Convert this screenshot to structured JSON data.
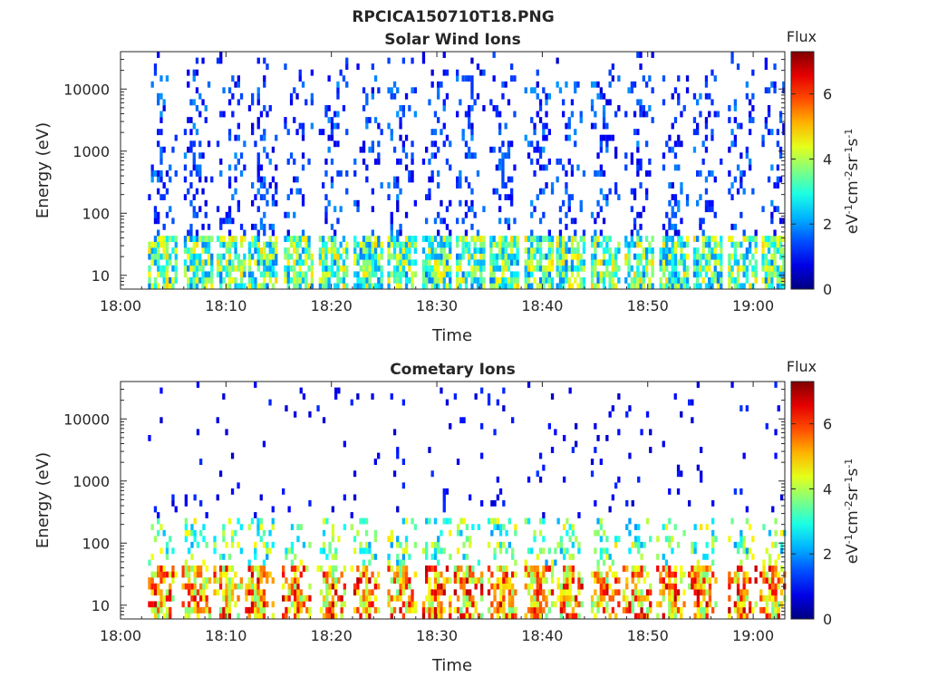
{
  "figure": {
    "title": "RPCICA150710T18.PNG"
  },
  "colormap": "jet",
  "chart_data": [
    {
      "type": "heatmap",
      "title": "Solar Wind Ions",
      "xlabel": "Time",
      "ylabel": "Energy (eV)",
      "x_ticks": [
        "18:00",
        "18:10",
        "18:20",
        "18:30",
        "18:40",
        "18:50",
        "19:00"
      ],
      "y_scale": "log",
      "y_ticks": [
        "10",
        "100",
        "1000",
        "10000"
      ],
      "ylim": [
        6,
        40000
      ],
      "colorbar": {
        "title": "Flux",
        "label": "eV-1cm-2sr-1s-1",
        "label_parts": [
          [
            "eV",
            ""
          ],
          [
            "-1",
            "sup"
          ],
          [
            "cm",
            ""
          ],
          [
            "-2",
            "sup"
          ],
          [
            "sr",
            ""
          ],
          [
            "-1",
            "sup"
          ],
          [
            "s",
            ""
          ],
          [
            "-1",
            "sup"
          ]
        ],
        "range": [
          0,
          7.3
        ],
        "ticks": [
          "0",
          "2",
          "4",
          "6"
        ]
      },
      "sweep_times_min": [
        3.8,
        7.2,
        10.3,
        13.3,
        16.7,
        20.0,
        23.3,
        26.5,
        29.8,
        33.0,
        36.2,
        39.5,
        42.5,
        45.8,
        49.0,
        52.3,
        55.5,
        58.8,
        62.0
      ],
      "low_energy_band_flux": 3.5,
      "high_energy_sparse_flux": 0.6
    },
    {
      "type": "heatmap",
      "title": "Cometary Ions",
      "xlabel": "Time",
      "ylabel": "Energy (eV)",
      "x_ticks": [
        "18:00",
        "18:10",
        "18:20",
        "18:30",
        "18:40",
        "18:50",
        "19:00"
      ],
      "y_scale": "log",
      "y_ticks": [
        "10",
        "100",
        "1000",
        "10000"
      ],
      "ylim": [
        6,
        40000
      ],
      "colorbar": {
        "title": "Flux",
        "label": "eV-1cm-2sr-1s-1",
        "label_parts": [
          [
            "eV",
            ""
          ],
          [
            "-1",
            "sup"
          ],
          [
            "cm",
            ""
          ],
          [
            "-2",
            "sup"
          ],
          [
            "sr",
            ""
          ],
          [
            "-1",
            "sup"
          ],
          [
            "s",
            ""
          ],
          [
            "-1",
            "sup"
          ]
        ],
        "range": [
          0,
          7.3
        ],
        "ticks": [
          "0",
          "2",
          "4",
          "6"
        ]
      },
      "sweep_times_min": [
        3.8,
        7.0,
        10.0,
        13.0,
        16.5,
        19.8,
        23.0,
        26.5,
        29.8,
        32.8,
        36.0,
        39.5,
        42.3,
        45.8,
        48.8,
        52.0,
        55.0,
        58.8,
        61.8
      ],
      "low_energy_band_flux": 6.3,
      "high_energy_sparse_flux": 0.5
    }
  ]
}
